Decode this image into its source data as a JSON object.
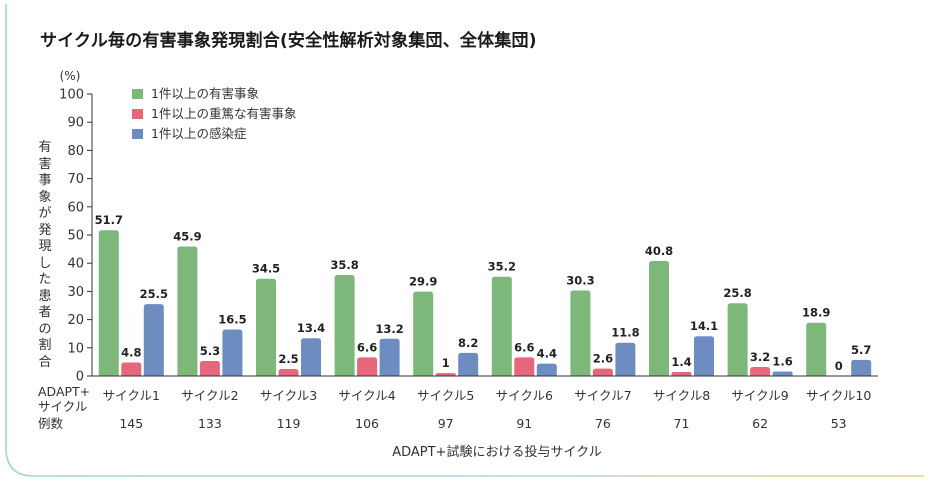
{
  "title": "サイクル毎の有害事象発現割合(安全性解析対象集団、全体集団)",
  "chart_data": {
    "type": "bar",
    "title": "サイクル毎の有害事象発現割合(安全性解析対象集団、全体集団)",
    "ylabel": "有害事象が発現した患者の割合",
    "yunit": "(%)",
    "xlabel": "ADAPT+試験における投与サイクル",
    "ylim": [
      0,
      100
    ],
    "yticks": [
      0,
      10,
      20,
      30,
      40,
      50,
      60,
      70,
      80,
      90,
      100
    ],
    "legend_position": "top-left",
    "row_label_cycle": "ADAPT+\nサイクル",
    "row_label_cases": "例数",
    "categories": [
      "サイクル1",
      "サイクル2",
      "サイクル3",
      "サイクル4",
      "サイクル5",
      "サイクル6",
      "サイクル7",
      "サイクル8",
      "サイクル9",
      "サイクル10"
    ],
    "cases": [
      "145",
      "133",
      "119",
      "106",
      "97",
      "91",
      "76",
      "71",
      "62",
      "53"
    ],
    "series": [
      {
        "name": "1件以上の有害事象",
        "color": "#7db87a",
        "values": [
          51.7,
          45.9,
          34.5,
          35.8,
          29.9,
          35.2,
          30.3,
          40.8,
          25.8,
          18.9
        ]
      },
      {
        "name": "1件以上の重篤な有害事象",
        "color": "#e8667a",
        "values": [
          4.8,
          5.3,
          2.5,
          6.6,
          1.0,
          6.6,
          2.6,
          1.4,
          3.2,
          0
        ]
      },
      {
        "name": "1件以上の感染症",
        "color": "#6d8cc0",
        "values": [
          25.5,
          16.5,
          13.4,
          13.2,
          8.2,
          4.4,
          11.8,
          14.1,
          1.6,
          5.7
        ]
      }
    ]
  }
}
